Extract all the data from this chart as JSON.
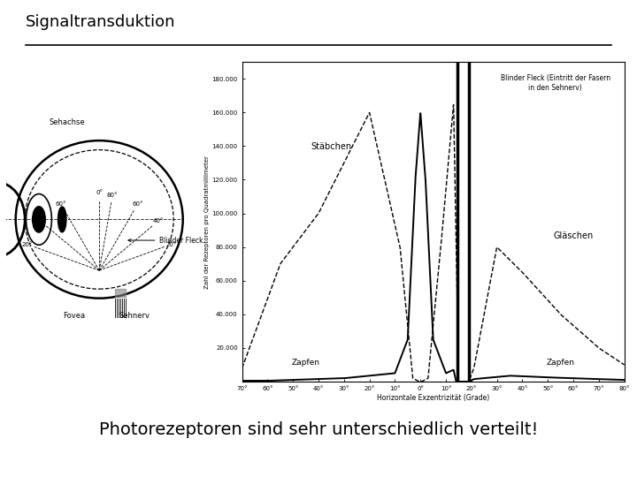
{
  "title": "Signaltransduktion",
  "subtitle": "Photorezeptoren sind sehr unterschiedlich verteilt!",
  "background_color": "#ffffff",
  "title_fontsize": 13,
  "subtitle_fontsize": 14,
  "title_color": "#000000",
  "subtitle_color": "#000000",
  "graph_ylabel": "Zahl der Rezeptoren pro Quadratmillimeter",
  "graph_xlabel": "Horizontale Exzentrizität (Grade)",
  "graph_ytick_labels": [
    "20.000",
    "40.000",
    "60.000",
    "80.000",
    "100.000",
    "120.000",
    "140.000",
    "160.000",
    "180.000"
  ],
  "graph_xtick_labels": [
    "70°",
    "60°",
    "50°",
    "40°",
    "30°",
    "20°",
    "10°",
    "0°",
    "10°",
    "20°",
    "30°",
    "40°",
    "50°",
    "60°",
    "70°",
    "80°"
  ],
  "label_stabchen": "Stäbchen",
  "label_zapfen_left": "Zapfen",
  "label_zapfen_right": "Zapfen",
  "label_glaschen": "Gläschen",
  "label_blind_spot": "Blinder Fleck (Eintritt der Fasern\nin den Sehnerv)",
  "eye_label_sehachse": "Sehachse",
  "eye_label_fovea": "Fovea",
  "eye_label_sehnerv": "Sehnerv",
  "eye_label_blinder_fleck": "Blinder Fleck"
}
